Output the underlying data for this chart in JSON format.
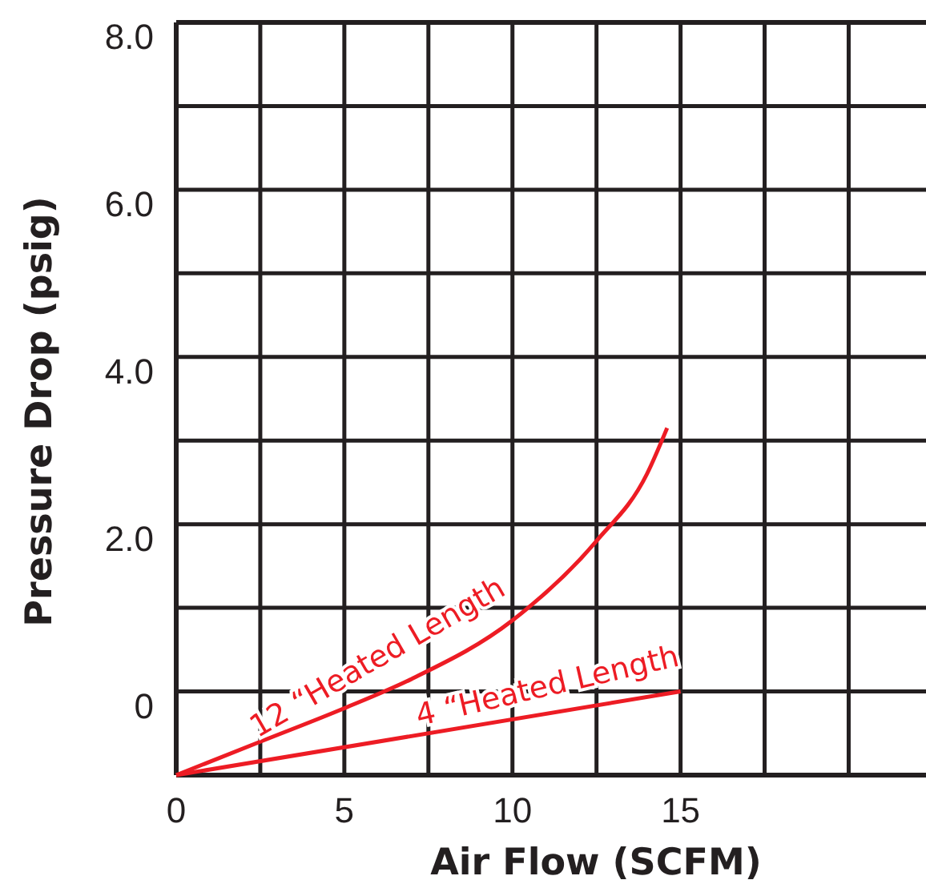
{
  "chart_data": {
    "type": "line",
    "xlabel": "Air Flow (SCFM)",
    "ylabel": "Pressure Drop (psig)",
    "xlim": [
      0,
      22.3
    ],
    "xticks": [
      0,
      {
        "value": 2.5,
        "label": null
      },
      5,
      {
        "value": 7.5,
        "label": null
      },
      10,
      {
        "value": 12.5,
        "label": null
      },
      15,
      {
        "value": 17.5,
        "label": null
      },
      {
        "value": 20,
        "label": null
      }
    ],
    "ylim": [
      -1,
      8
    ],
    "yticks": [
      {
        "value": -1,
        "label": null
      },
      0,
      {
        "value": 1,
        "label": null
      },
      {
        "value": 2,
        "label": "2.0"
      },
      {
        "value": 3,
        "label": null
      },
      {
        "value": 4,
        "label": "4.0"
      },
      {
        "value": 5,
        "label": null
      },
      {
        "value": 6,
        "label": "6.0"
      },
      {
        "value": 7,
        "label": null
      },
      {
        "value": 8,
        "label": "8.0"
      }
    ],
    "grid": true,
    "marker": "none",
    "line_style": "solid",
    "series": [
      {
        "name": "12 “Heated Length",
        "color": "#ed1c24",
        "x": [
          0,
          2.5,
          5,
          7,
          10,
          12.5,
          14,
          14.6
        ],
        "values": [
          -1,
          -0.6,
          -0.2,
          0.15,
          0.85,
          1.8,
          2.6,
          3.15
        ]
      },
      {
        "name": "4 “Heated Length",
        "color": "#ed1c24",
        "x": [
          0,
          15
        ],
        "values": [
          -1,
          0
        ]
      }
    ]
  }
}
